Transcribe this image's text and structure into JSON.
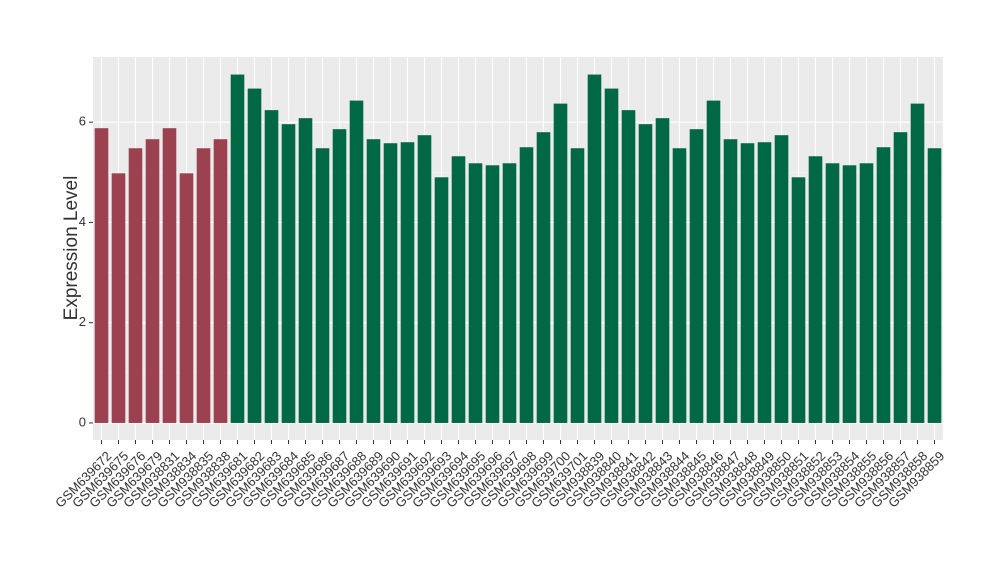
{
  "chart_data": {
    "type": "bar",
    "y_label": "Expression Level",
    "categories": [
      "GSM639672",
      "GSM639675",
      "GSM639676",
      "GSM639679",
      "GSM938831",
      "GSM938834",
      "GSM938835",
      "GSM938838",
      "GSM639681",
      "GSM639682",
      "GSM639683",
      "GSM639684",
      "GSM639685",
      "GSM639686",
      "GSM639687",
      "GSM639688",
      "GSM639689",
      "GSM639690",
      "GSM639691",
      "GSM639692",
      "GSM639693",
      "GSM639694",
      "GSM639695",
      "GSM639696",
      "GSM639697",
      "GSM639698",
      "GSM639699",
      "GSM639700",
      "GSM639701",
      "GSM938839",
      "GSM938840",
      "GSM938841",
      "GSM938842",
      "GSM938843",
      "GSM938844",
      "GSM938845",
      "GSM938846",
      "GSM938847",
      "GSM938848",
      "GSM938849",
      "GSM938850",
      "GSM938851",
      "GSM938852",
      "GSM938853",
      "GSM938854",
      "GSM938855",
      "GSM938856",
      "GSM938857",
      "GSM938858",
      "GSM938859"
    ],
    "values": [
      5.88,
      4.98,
      5.48,
      5.66,
      5.88,
      4.98,
      5.48,
      5.66,
      6.95,
      6.67,
      6.24,
      5.96,
      6.08,
      5.48,
      5.86,
      6.43,
      5.66,
      5.58,
      5.6,
      5.74,
      4.9,
      5.32,
      5.18,
      5.14,
      5.18,
      5.5,
      5.8,
      6.37,
      5.48,
      6.95,
      6.67,
      6.24,
      5.96,
      6.08,
      5.48,
      5.86,
      6.43,
      5.66,
      5.58,
      5.6,
      5.74,
      4.9,
      5.32,
      5.18,
      5.14,
      5.18,
      5.5,
      5.8,
      6.37,
      5.48
    ],
    "colors": [
      "#9b4150",
      "#9b4150",
      "#9b4150",
      "#9b4150",
      "#9b4150",
      "#9b4150",
      "#9b4150",
      "#9b4150",
      "#006845",
      "#006845",
      "#006845",
      "#006845",
      "#006845",
      "#006845",
      "#006845",
      "#006845",
      "#006845",
      "#006845",
      "#006845",
      "#006845",
      "#006845",
      "#006845",
      "#006845",
      "#006845",
      "#006845",
      "#006845",
      "#006845",
      "#006845",
      "#006845",
      "#006845",
      "#006845",
      "#006845",
      "#006845",
      "#006845",
      "#006845",
      "#006845",
      "#006845",
      "#006845",
      "#006845",
      "#006845",
      "#006845",
      "#006845",
      "#006845",
      "#006845",
      "#006845",
      "#006845",
      "#006845",
      "#006845",
      "#006845",
      "#006845"
    ],
    "ylim": [
      -0.34,
      7.3
    ],
    "yticks": [
      0,
      2,
      4,
      6
    ],
    "grid": true
  }
}
